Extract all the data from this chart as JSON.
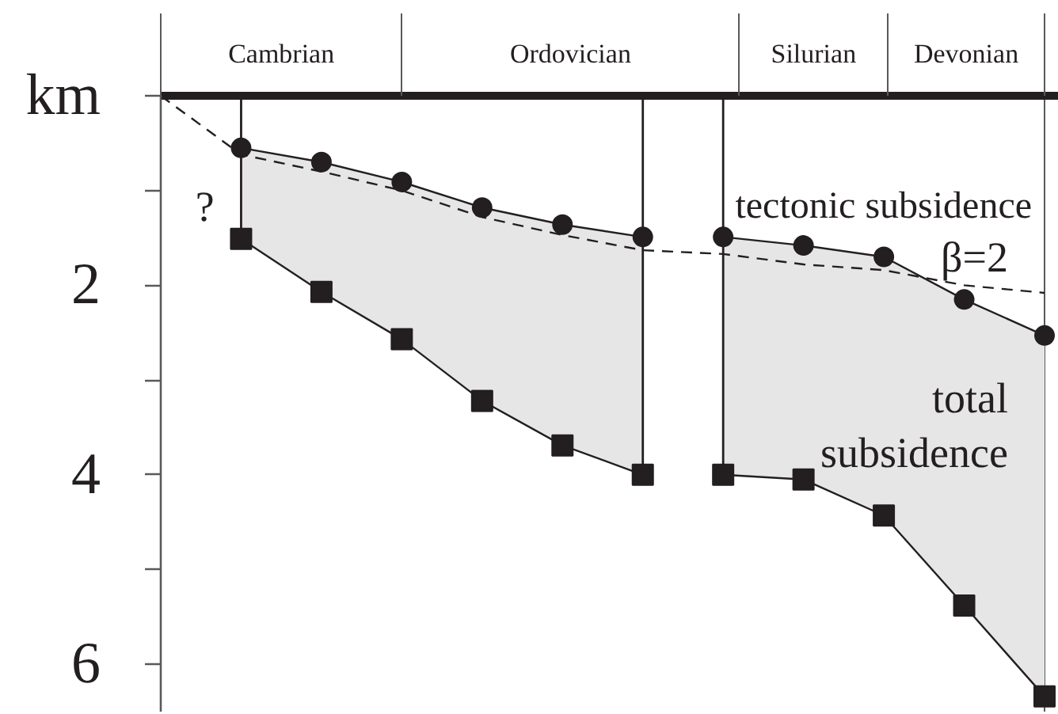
{
  "chart_data": {
    "type": "line",
    "categories": [
      null,
      null,
      null,
      null,
      null,
      null,
      null,
      null,
      null,
      null,
      null,
      null
    ],
    "ylim": [
      6.5,
      0
    ],
    "yticks": [
      {
        "value": 0,
        "label": "km"
      },
      {
        "value": 1,
        "label": null
      },
      2,
      {
        "value": 3,
        "label": null
      },
      4,
      {
        "value": 5,
        "label": null
      },
      6
    ],
    "tick_labels": "y",
    "grid": false,
    "series": [
      {
        "color": "#231f20",
        "marker": "circle",
        "values": [
          null,
          0.55,
          0.7,
          0.91,
          1.18,
          1.36,
          1.49,
          null,
          null,
          null,
          null,
          null
        ]
      },
      {
        "name": "tectonic subsidence",
        "color": "#231f20",
        "marker": "circle",
        "values": [
          null,
          null,
          null,
          null,
          null,
          null,
          null,
          1.49,
          1.58,
          1.7,
          2.15,
          2.53
        ]
      },
      {
        "color": "#231f20",
        "marker": "square",
        "values": [
          null,
          1.51,
          2.07,
          2.57,
          3.22,
          3.69,
          4.0,
          null,
          null,
          null,
          null,
          null
        ],
        "lower": [
          null,
          0.55,
          0.7,
          0.91,
          1.18,
          1.36,
          1.49,
          null,
          null,
          null,
          null,
          null
        ],
        "upper": [
          null,
          1.51,
          2.07,
          2.57,
          3.22,
          3.69,
          4.0,
          null,
          null,
          null,
          null,
          null
        ]
      },
      {
        "name": "total subsidence",
        "color": "#231f20",
        "marker": "square",
        "values": [
          null,
          null,
          null,
          null,
          null,
          null,
          null,
          4.0,
          4.05,
          4.43,
          5.38,
          6.34
        ],
        "lower": [
          null,
          null,
          null,
          null,
          null,
          null,
          null,
          1.49,
          1.58,
          1.7,
          2.15,
          2.53
        ],
        "upper": [
          null,
          null,
          null,
          null,
          null,
          null,
          null,
          4.0,
          4.05,
          4.43,
          5.38,
          6.34
        ]
      },
      {
        "name": "β=2",
        "color": "#231f20",
        "marker": "none",
        "line_style": "dashed",
        "values": [
          0,
          0.62,
          0.8,
          1.0,
          1.28,
          1.47,
          1.63,
          1.67,
          1.78,
          1.84,
          2.0,
          2.08
        ]
      },
      {
        "type": "lollipop",
        "color": "#231f20",
        "values": [
          null,
          1.51,
          null,
          null,
          null,
          null,
          4.0,
          4.0,
          null,
          null,
          null,
          null
        ]
      }
    ],
    "annotations": [
      "Cambrian",
      "Ordovician",
      "Silurian",
      "Devonian",
      "?"
    ]
  }
}
